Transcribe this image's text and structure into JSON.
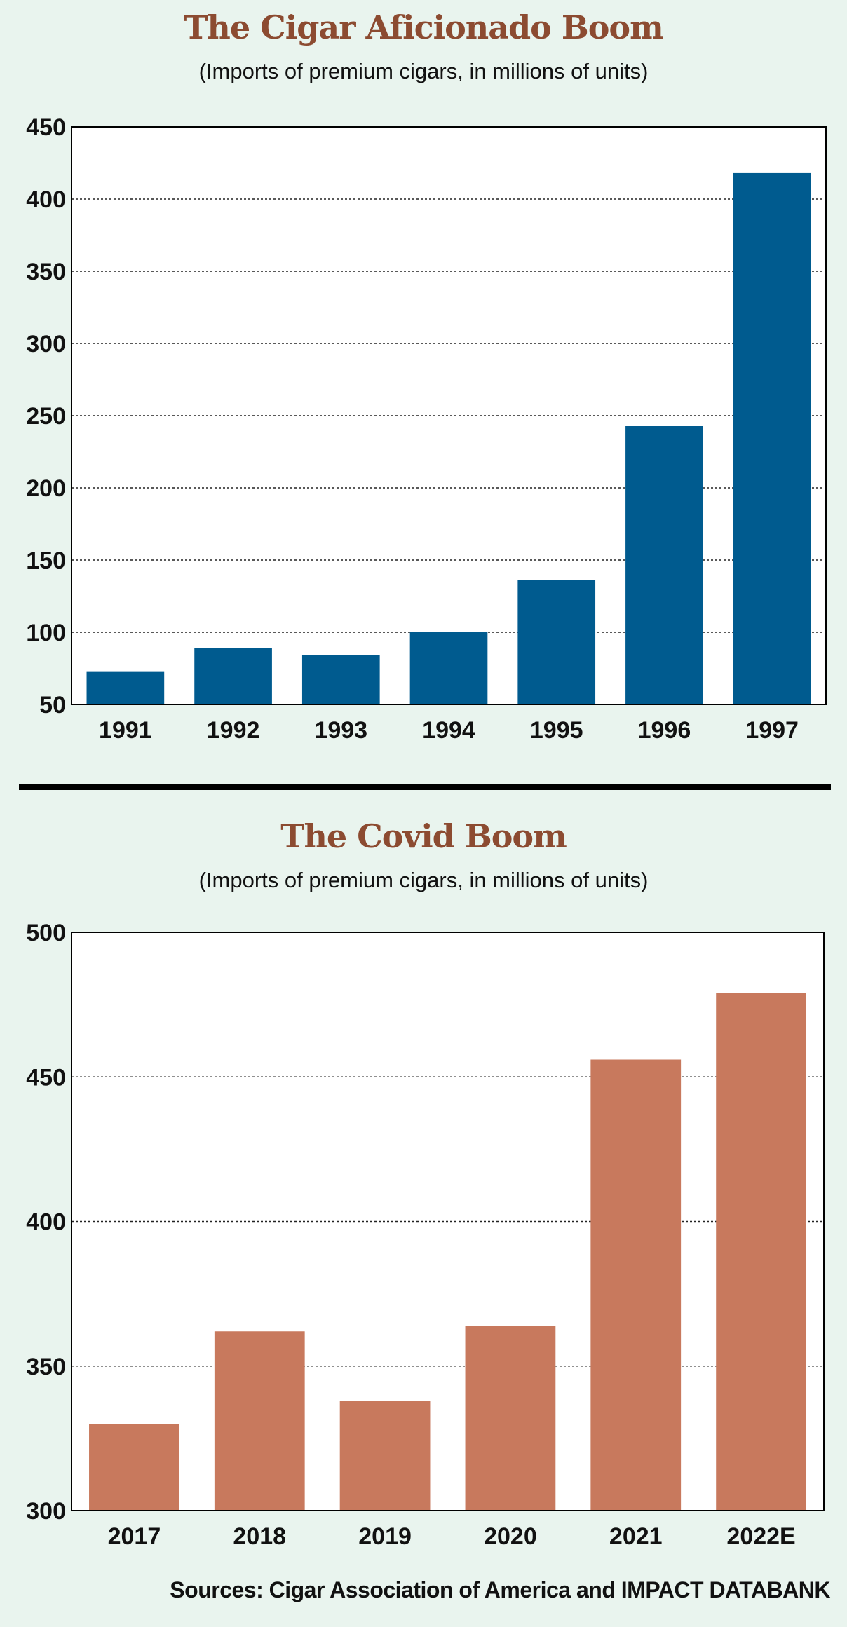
{
  "chart_data": [
    {
      "type": "bar",
      "title": "The Cigar Aficionado Boom",
      "subtitle": "(Imports of premium cigars, in millions of units)",
      "categories": [
        "1991",
        "1992",
        "1993",
        "1994",
        "1995",
        "1996",
        "1997"
      ],
      "values": [
        73,
        89,
        84,
        100,
        136,
        243,
        418
      ],
      "ylim": [
        50,
        450
      ],
      "yticks": [
        50,
        100,
        150,
        200,
        250,
        300,
        350,
        400,
        450
      ],
      "grid": true,
      "bar_color": "#005b8f"
    },
    {
      "type": "bar",
      "title": "The Covid Boom",
      "subtitle": "(Imports of premium cigars, in millions of units)",
      "categories": [
        "2017",
        "2018",
        "2019",
        "2020",
        "2021",
        "2022E"
      ],
      "values": [
        330,
        362,
        338,
        364,
        456,
        479
      ],
      "ylim": [
        300,
        500
      ],
      "yticks": [
        300,
        350,
        400,
        450,
        500
      ],
      "grid": true,
      "bar_color": "#c8795d"
    }
  ],
  "source": "Sources: Cigar Association of America and IMPACT DATABANK",
  "colors": {
    "background": "#e9f4ee",
    "title": "#8c4b31"
  }
}
